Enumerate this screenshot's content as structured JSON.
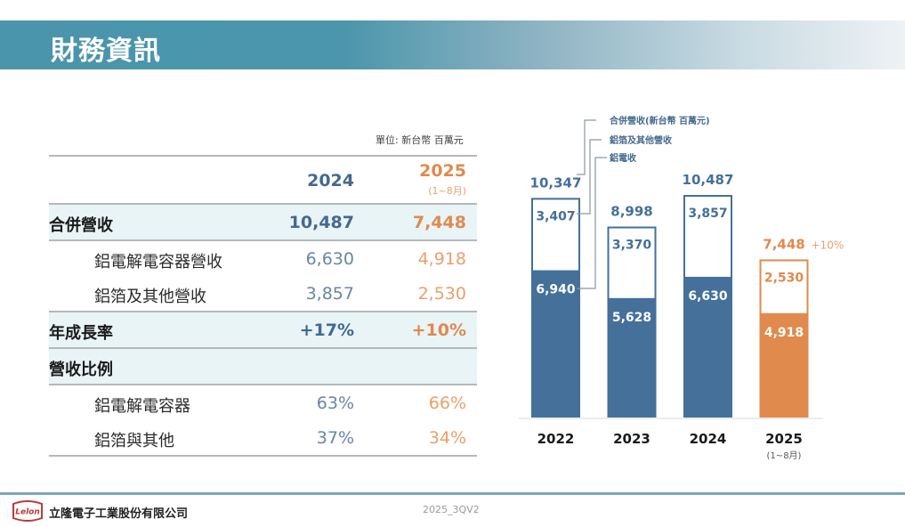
{
  "header": {
    "title": "財務資訊"
  },
  "table": {
    "unit": "單位: 新台幣 百萬元",
    "columns": [
      {
        "year": "2024",
        "note": ""
      },
      {
        "year": "2025",
        "note": "(1~8月)"
      }
    ],
    "rows": [
      {
        "label": "合併營收",
        "v2024": "10,487",
        "v2025": "7,448",
        "type": "main"
      },
      {
        "label": "鋁電解電容器營收",
        "v2024": "6,630",
        "v2025": "4,918",
        "type": "sub"
      },
      {
        "label": "鋁箔及其他營收",
        "v2024": "3,857",
        "v2025": "2,530",
        "type": "sub"
      },
      {
        "label": "年成長率",
        "v2024": "+17%",
        "v2025": "+10%",
        "type": "main"
      },
      {
        "label": "營收比例",
        "v2024": "",
        "v2025": "",
        "type": "main"
      },
      {
        "label": "鋁電解電容器",
        "v2024": "63%",
        "v2025": "66%",
        "type": "sub"
      },
      {
        "label": "鋁箔與其他",
        "v2024": "37%",
        "v2025": "34%",
        "type": "sub"
      }
    ]
  },
  "chart_data": {
    "type": "bar",
    "stacked": true,
    "title": "",
    "xlabel": "",
    "ylabel": "",
    "categories": [
      "2022",
      "2023",
      "2024",
      "2025"
    ],
    "category_notes": [
      "",
      "",
      "",
      "(1~8月)"
    ],
    "series": [
      {
        "name": "鋁電收",
        "values": [
          6940,
          5628,
          6630,
          4918
        ],
        "labels": [
          "6,940",
          "5,628",
          "6,630",
          "4,918"
        ]
      },
      {
        "name": "鋁箔及其他營收",
        "values": [
          3407,
          3370,
          3857,
          2530
        ],
        "labels": [
          "3,407",
          "3,370",
          "3,857",
          "2,530"
        ]
      }
    ],
    "totals": [
      10347,
      8998,
      10487,
      7448
    ],
    "total_labels": [
      "10,347",
      "8,998",
      "10,487",
      "7,448"
    ],
    "legend": [
      "合併營收(新台幣 百萬元)",
      "鋁箔及其他營收",
      "鋁電收"
    ],
    "annotations": [
      {
        "category": "2025",
        "text": "+10%"
      }
    ],
    "ylim": [
      0,
      11000
    ],
    "grid": false,
    "colors": {
      "historical": "#44709a",
      "current": "#e08a4e"
    }
  },
  "footer": {
    "company": "立隆電子工業股份有限公司",
    "doc_version": "2025_3QV2",
    "logo_text": "Lelon"
  }
}
